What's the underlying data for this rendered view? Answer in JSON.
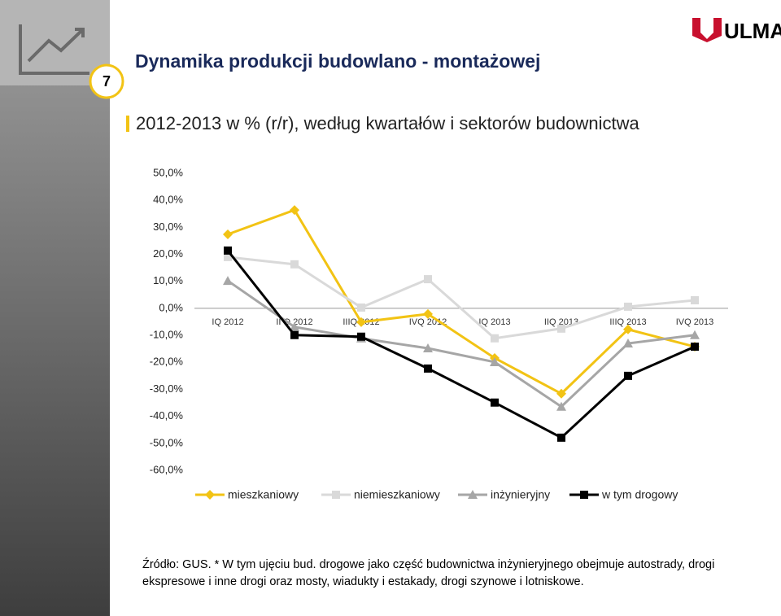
{
  "slide_number": "7",
  "logo": "ULMA",
  "title": "Dynamika produkcji budowlano - montażowej",
  "subtitle": "2012-2013  w % (r/r), według kwartałów i sektorów budownictwa",
  "chart_data": {
    "type": "line",
    "categories": [
      "IQ 2012",
      "II Q 2012",
      "IIIQ 2012",
      "IVQ 2012",
      "IQ 2013",
      "IIQ 2013",
      "IIIQ 2013",
      "IVQ 2013"
    ],
    "series": [
      {
        "name": "mieszkaniowy",
        "color": "#f2c314",
        "marker": "diamond",
        "values": [
          27.4,
          36.4,
          -5.1,
          -2.1,
          -18.4,
          -31.6,
          -7.8,
          -14.2
        ]
      },
      {
        "name": "niemieszkaniowy",
        "color": "#d9d9d9",
        "marker": "square",
        "values": [
          19.0,
          16.3,
          0.3,
          10.8,
          -11.1,
          -7.5,
          0.6,
          3.0
        ]
      },
      {
        "name": "inżynieryjny",
        "color": "#a6a6a6",
        "marker": "triangle",
        "values": [
          10.2,
          -6.9,
          -11.1,
          -14.8,
          -19.9,
          -36.4,
          -13.0,
          -9.9
        ]
      },
      {
        "name": "w tym drogowy",
        "color": "#000000",
        "marker": "square",
        "values": [
          21.4,
          -9.9,
          -10.5,
          -22.3,
          -34.9,
          -47.9,
          -25.0,
          -14.2
        ]
      }
    ],
    "ylim": [
      -60,
      50
    ],
    "yticks": [
      {
        "value": 50,
        "label": "50,0%"
      },
      {
        "value": 40,
        "label": "40,0%"
      },
      {
        "value": 30,
        "label": "30,0%"
      },
      {
        "value": 20,
        "label": "20,0%"
      },
      {
        "value": 10,
        "label": "10,0%"
      },
      {
        "value": 0,
        "label": "0,0%"
      },
      {
        "value": -10,
        "label": "-10,0%"
      },
      {
        "value": -20,
        "label": "-20,0%"
      },
      {
        "value": -30,
        "label": "-30,0%"
      },
      {
        "value": -40,
        "label": "-40,0%"
      },
      {
        "value": -50,
        "label": "-50,0%"
      },
      {
        "value": -60,
        "label": "-60,0%"
      }
    ],
    "grid": false,
    "legend": "bottom"
  },
  "source": [
    "Źródło: GUS. * W tym ujęciu bud. drogowe  jako część budownictwa inżynieryjnego obejmuje autostrady, drogi",
    "ekspresowe i inne drogi oraz mosty, wiadukty i estakady, drogi  szynowe i lotniskowe."
  ]
}
